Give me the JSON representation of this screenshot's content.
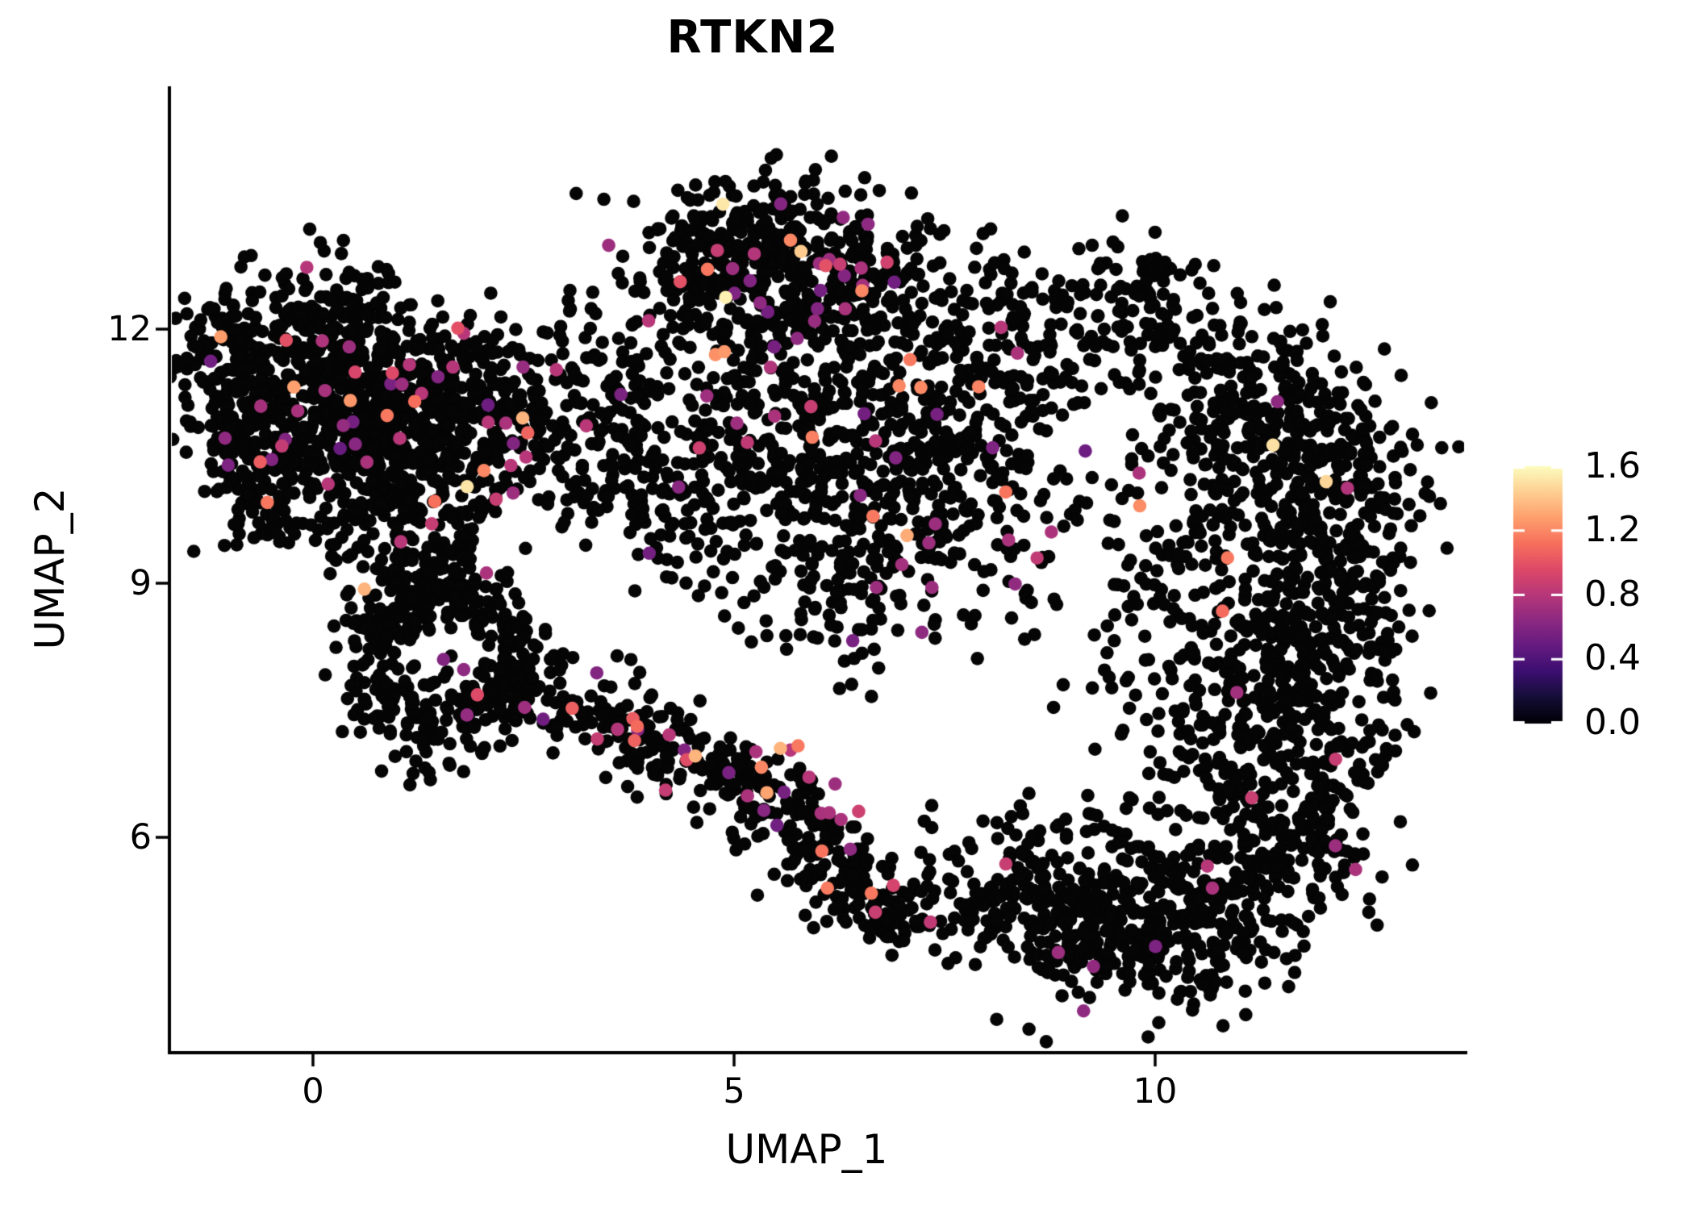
{
  "title": "RTKN2",
  "chart_data": {
    "type": "scatter",
    "subtype": "umap-feature-plot",
    "title": "RTKN2",
    "xlabel": "UMAP_1",
    "ylabel": "UMAP_2",
    "x_tick_labels": [
      "0",
      "5",
      "10"
    ],
    "x_tick_values": [
      0,
      5,
      10
    ],
    "y_tick_labels": [
      "12",
      "9",
      "6"
    ],
    "y_tick_values": [
      12,
      9,
      6
    ],
    "xlim": [
      -1.7,
      13.7
    ],
    "ylim": [
      3.4,
      14.9
    ],
    "grid": false,
    "background": "#ffffff",
    "point_radius_px": 8.3,
    "zero_expression_color": "#050505",
    "colorbar": {
      "side": "right",
      "tick_labels": [
        "1.6",
        "1.2",
        "0.8",
        "0.4",
        "0.0"
      ],
      "tick_values": [
        1.6,
        1.2,
        0.8,
        0.4,
        0.0
      ],
      "vmin": 0.0,
      "vmax": 1.6,
      "colormap": "magma",
      "stops": [
        [
          0.0,
          "#000004"
        ],
        [
          0.1,
          "#140e36"
        ],
        [
          0.2,
          "#3b0f70"
        ],
        [
          0.3,
          "#641a80"
        ],
        [
          0.4,
          "#8c2981"
        ],
        [
          0.5,
          "#b73779"
        ],
        [
          0.6,
          "#de4968"
        ],
        [
          0.7,
          "#f7705c"
        ],
        [
          0.8,
          "#fe9f6d"
        ],
        [
          0.9,
          "#fecf92"
        ],
        [
          1.0,
          "#fcfdbf"
        ]
      ]
    },
    "clusters_format": "[center_x, center_y, sigma_x, sigma_y, n_points, expressed_fraction]",
    "clusters": [
      [
        -0.9,
        11.6,
        0.45,
        0.55,
        170,
        0.03
      ],
      [
        0.2,
        11.9,
        0.5,
        0.5,
        190,
        0.03
      ],
      [
        1.0,
        11.35,
        0.55,
        0.5,
        190,
        0.035
      ],
      [
        0.3,
        10.9,
        0.55,
        0.5,
        170,
        0.03
      ],
      [
        1.7,
        10.75,
        0.6,
        0.5,
        150,
        0.04
      ],
      [
        -0.55,
        10.55,
        0.4,
        0.45,
        110,
        0.02
      ],
      [
        1.1,
        10.15,
        0.65,
        0.4,
        110,
        0.03
      ],
      [
        2.3,
        11.3,
        0.5,
        0.45,
        90,
        0.04
      ],
      [
        0.9,
        9.6,
        0.6,
        0.35,
        70,
        0.02
      ],
      [
        -0.75,
        9.9,
        0.3,
        0.4,
        40,
        0.02
      ],
      [
        0.75,
        8.45,
        0.26,
        0.26,
        52,
        0.006
      ],
      [
        1.2,
        8.8,
        0.28,
        0.24,
        52,
        0.006
      ],
      [
        1.9,
        8.75,
        0.28,
        0.24,
        48,
        0.006
      ],
      [
        2.35,
        8.25,
        0.26,
        0.28,
        52,
        0.006
      ],
      [
        2.05,
        7.55,
        0.28,
        0.26,
        50,
        0.006
      ],
      [
        1.35,
        7.3,
        0.3,
        0.24,
        55,
        0.006
      ],
      [
        0.8,
        7.65,
        0.26,
        0.26,
        50,
        0.006
      ],
      [
        1.35,
        9.15,
        0.45,
        0.25,
        45,
        0.01
      ],
      [
        2.55,
        7.7,
        0.3,
        0.24,
        48,
        0.05
      ],
      [
        3.2,
        7.5,
        0.3,
        0.24,
        48,
        0.05
      ],
      [
        3.8,
        7.25,
        0.3,
        0.24,
        48,
        0.05
      ],
      [
        4.4,
        7.0,
        0.3,
        0.24,
        48,
        0.05
      ],
      [
        5.0,
        6.7,
        0.3,
        0.24,
        48,
        0.05
      ],
      [
        5.5,
        6.35,
        0.3,
        0.24,
        48,
        0.05
      ],
      [
        5.9,
        6.0,
        0.3,
        0.24,
        48,
        0.05
      ],
      [
        6.3,
        5.6,
        0.3,
        0.24,
        48,
        0.05
      ],
      [
        6.6,
        5.25,
        0.3,
        0.24,
        48,
        0.05
      ],
      [
        6.9,
        4.95,
        0.24,
        0.2,
        30,
        0.05
      ],
      [
        4.6,
        12.9,
        0.5,
        0.4,
        105,
        0.03
      ],
      [
        5.4,
        13.2,
        0.5,
        0.35,
        105,
        0.03
      ],
      [
        6.2,
        12.9,
        0.5,
        0.4,
        105,
        0.03
      ],
      [
        6.9,
        12.5,
        0.4,
        0.4,
        80,
        0.03
      ],
      [
        5.0,
        12.35,
        0.55,
        0.45,
        95,
        0.03
      ],
      [
        5.9,
        12.2,
        0.5,
        0.4,
        85,
        0.03
      ],
      [
        2.9,
        11.1,
        0.5,
        0.6,
        80,
        0.03
      ],
      [
        3.6,
        10.5,
        0.5,
        0.55,
        70,
        0.03
      ],
      [
        4.3,
        11.3,
        0.55,
        0.55,
        80,
        0.03
      ],
      [
        5.0,
        10.6,
        0.65,
        0.55,
        90,
        0.03
      ],
      [
        5.9,
        10.9,
        0.55,
        0.55,
        90,
        0.03
      ],
      [
        6.5,
        10.3,
        0.55,
        0.6,
        85,
        0.03
      ],
      [
        7.3,
        11.5,
        0.55,
        0.55,
        75,
        0.03
      ],
      [
        7.8,
        10.5,
        0.45,
        0.7,
        60,
        0.03
      ],
      [
        5.4,
        9.5,
        0.7,
        0.45,
        65,
        0.02
      ],
      [
        4.4,
        9.9,
        0.55,
        0.45,
        55,
        0.02
      ],
      [
        8.5,
        11.75,
        0.55,
        0.5,
        65,
        0.03
      ],
      [
        8.2,
        10.0,
        0.6,
        0.8,
        40,
        0.02
      ],
      [
        6.8,
        9.65,
        0.55,
        0.55,
        90,
        0.03
      ],
      [
        7.5,
        10.9,
        0.5,
        0.6,
        65,
        0.03
      ],
      [
        6.3,
        8.6,
        0.5,
        0.4,
        55,
        0.02
      ],
      [
        8.7,
        8.9,
        0.7,
        0.8,
        30,
        0.02
      ],
      [
        9.3,
        10.4,
        0.5,
        0.8,
        30,
        0.02
      ],
      [
        9.9,
        12.35,
        0.45,
        0.45,
        80,
        0.004
      ],
      [
        10.8,
        11.4,
        0.55,
        0.5,
        95,
        0.004
      ],
      [
        11.5,
        11.1,
        0.5,
        0.5,
        100,
        0.004
      ],
      [
        12.1,
        10.4,
        0.5,
        0.55,
        105,
        0.004
      ],
      [
        11.0,
        10.3,
        0.5,
        0.55,
        95,
        0.004
      ],
      [
        12.3,
        9.5,
        0.45,
        0.65,
        105,
        0.004
      ],
      [
        11.5,
        9.0,
        0.5,
        0.6,
        105,
        0.004
      ],
      [
        12.2,
        8.3,
        0.5,
        0.6,
        105,
        0.004
      ],
      [
        11.3,
        7.9,
        0.55,
        0.55,
        100,
        0.004
      ],
      [
        12.0,
        7.0,
        0.5,
        0.6,
        100,
        0.004
      ],
      [
        11.2,
        6.6,
        0.55,
        0.55,
        100,
        0.004
      ],
      [
        11.8,
        5.9,
        0.5,
        0.5,
        90,
        0.004
      ],
      [
        10.9,
        5.4,
        0.55,
        0.45,
        85,
        0.004
      ],
      [
        10.3,
        8.9,
        0.45,
        0.9,
        70,
        0.004
      ],
      [
        10.25,
        6.9,
        0.45,
        0.7,
        55,
        0.004
      ],
      [
        8.05,
        5.3,
        0.5,
        0.45,
        75,
        0.005
      ],
      [
        8.7,
        5.6,
        0.5,
        0.45,
        85,
        0.005
      ],
      [
        9.4,
        5.2,
        0.5,
        0.4,
        85,
        0.005
      ],
      [
        10.0,
        4.85,
        0.5,
        0.4,
        85,
        0.005
      ],
      [
        9.0,
        4.75,
        0.5,
        0.35,
        65,
        0.005
      ],
      [
        10.6,
        4.6,
        0.45,
        0.4,
        65,
        0.005
      ],
      [
        8.6,
        12.4,
        0.7,
        0.5,
        40,
        0.01
      ]
    ],
    "expressed_points_format": "[umap1, umap2, expression_value]",
    "expressed_points": [
      [
        1.83,
        10.14,
        1.52
      ],
      [
        0.88,
        10.98,
        1.15
      ],
      [
        2.03,
        10.33,
        1.2
      ],
      [
        2.49,
        10.95,
        1.35
      ],
      [
        -0.37,
        10.62,
        0.85
      ],
      [
        -0.49,
        10.46,
        0.6
      ],
      [
        0.43,
        11.79,
        0.7
      ],
      [
        1.79,
        11.95,
        0.8
      ],
      [
        2.89,
        11.52,
        0.8
      ],
      [
        1.29,
        11.24,
        0.8
      ],
      [
        0.64,
        10.43,
        0.75
      ],
      [
        0.18,
        10.17,
        0.8
      ],
      [
        1.03,
        10.71,
        0.8
      ],
      [
        2.08,
        10.9,
        0.8
      ],
      [
        2.29,
        10.89,
        0.75
      ],
      [
        2.38,
        10.65,
        0.6
      ],
      [
        2.53,
        10.49,
        0.8
      ],
      [
        2.35,
        10.39,
        0.8
      ],
      [
        0.61,
        8.93,
        1.35
      ],
      [
        2.06,
        9.12,
        0.75
      ],
      [
        1.79,
        7.98,
        0.65
      ],
      [
        1.55,
        8.1,
        0.6
      ],
      [
        3.85,
        7.31,
        1.1
      ],
      [
        4.23,
        7.21,
        0.8
      ],
      [
        4.41,
        7.03,
        0.6
      ],
      [
        4.54,
        6.96,
        1.35
      ],
      [
        5.26,
        7.01,
        0.75
      ],
      [
        5.55,
        7.05,
        1.35
      ],
      [
        5.76,
        7.08,
        1.15
      ],
      [
        5.67,
        7.03,
        0.8
      ],
      [
        5.89,
        6.71,
        0.8
      ],
      [
        6.2,
        6.63,
        0.7
      ],
      [
        5.16,
        6.49,
        0.75
      ],
      [
        6.13,
        6.29,
        0.75
      ],
      [
        6.27,
        6.21,
        0.75
      ],
      [
        6.38,
        5.86,
        0.65
      ],
      [
        6.63,
        5.34,
        1.15
      ],
      [
        5.67,
        13.05,
        1.2
      ],
      [
        7.09,
        11.64,
        1.15
      ],
      [
        6.13,
        12.82,
        0.7
      ],
      [
        6.51,
        12.72,
        0.75
      ],
      [
        6.31,
        12.63,
        0.6
      ],
      [
        5.19,
        12.57,
        0.6
      ],
      [
        5.31,
        12.31,
        0.65
      ],
      [
        5.99,
        12.24,
        0.6
      ],
      [
        6.32,
        12.24,
        0.75
      ],
      [
        5.75,
        11.89,
        0.65
      ],
      [
        8.17,
        12.02,
        0.8
      ],
      [
        6.96,
        11.33,
        1.2
      ],
      [
        6.65,
        9.79,
        1.15
      ],
      [
        7.39,
        9.7,
        0.7
      ],
      [
        8.26,
        9.51,
        0.75
      ],
      [
        6.68,
        10.68,
        0.8
      ],
      [
        6.92,
        10.48,
        0.6
      ],
      [
        6.69,
        8.95,
        0.7
      ],
      [
        7.35,
        8.95,
        0.7
      ],
      [
        7.23,
        8.42,
        0.65
      ],
      [
        11.4,
        10.63,
        1.5
      ],
      [
        10.86,
        9.3,
        1.15
      ],
      [
        10.8,
        8.67,
        1.1
      ],
      [
        12.14,
        5.9,
        0.7
      ],
      [
        12.38,
        5.62,
        0.75
      ],
      [
        9.81,
        10.3,
        0.75
      ],
      [
        10.62,
        5.66,
        0.8
      ],
      [
        10.68,
        5.4,
        0.75
      ],
      [
        8.85,
        4.64,
        0.7
      ],
      [
        9.15,
        3.95,
        0.65
      ]
    ]
  }
}
